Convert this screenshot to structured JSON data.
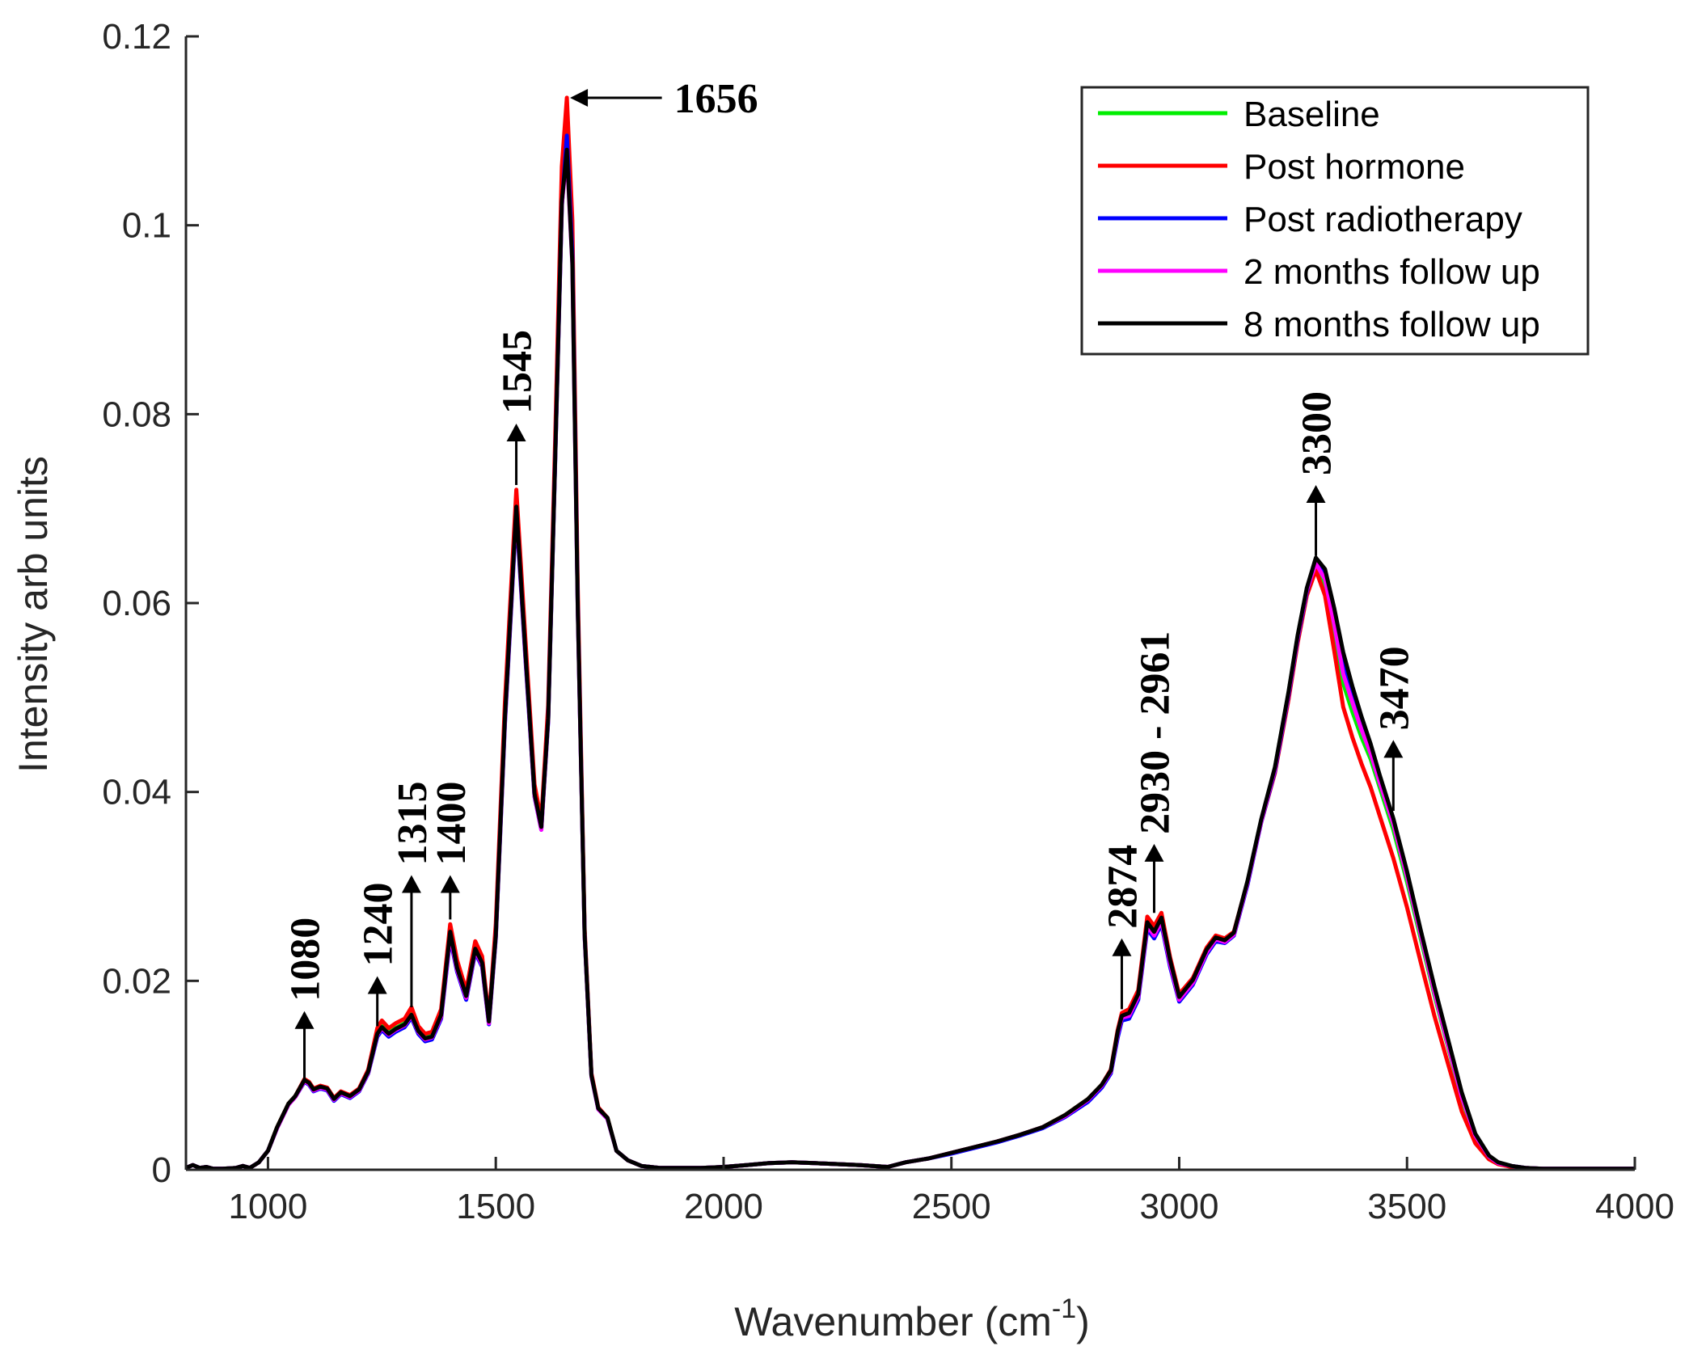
{
  "chart_data": {
    "type": "line",
    "title": "",
    "xlabel": "Wavenumber (cm",
    "xlabel_sup": "-1",
    "xlabel_close": ")",
    "ylabel": "Intensity arb units",
    "xlim": [
      820,
      4000
    ],
    "ylim": [
      0,
      0.12
    ],
    "xticks": [
      1000,
      1500,
      2000,
      2500,
      3000,
      3500,
      4000
    ],
    "xtick_labels": [
      "1000",
      "1500",
      "2000",
      "2500",
      "3000",
      "3500",
      "4000"
    ],
    "yticks": [
      0,
      0.02,
      0.04,
      0.06,
      0.08,
      0.1,
      0.12
    ],
    "ytick_labels": [
      "0",
      "0.02",
      "0.04",
      "0.06",
      "0.08",
      "0.1",
      "0.12"
    ],
    "grid": false,
    "legend_position": "top-right",
    "x": [
      820,
      835,
      850,
      865,
      880,
      900,
      930,
      945,
      960,
      980,
      1000,
      1020,
      1045,
      1060,
      1080,
      1090,
      1100,
      1115,
      1130,
      1145,
      1160,
      1180,
      1200,
      1220,
      1240,
      1250,
      1265,
      1280,
      1300,
      1315,
      1330,
      1345,
      1360,
      1380,
      1400,
      1415,
      1435,
      1455,
      1470,
      1485,
      1500,
      1520,
      1545,
      1565,
      1585,
      1600,
      1615,
      1630,
      1645,
      1656,
      1668,
      1680,
      1695,
      1710,
      1725,
      1745,
      1765,
      1790,
      1820,
      1860,
      1900,
      1950,
      2000,
      2050,
      2100,
      2150,
      2200,
      2250,
      2300,
      2360,
      2400,
      2450,
      2500,
      2550,
      2600,
      2650,
      2700,
      2750,
      2800,
      2830,
      2850,
      2865,
      2874,
      2890,
      2910,
      2930,
      2945,
      2961,
      2980,
      3000,
      3030,
      3060,
      3080,
      3100,
      3120,
      3150,
      3180,
      3210,
      3240,
      3260,
      3280,
      3300,
      3320,
      3340,
      3360,
      3380,
      3400,
      3420,
      3440,
      3470,
      3500,
      3530,
      3560,
      3590,
      3620,
      3650,
      3680,
      3700,
      3730,
      3760,
      3800,
      3850,
      3900,
      3950,
      4000
    ],
    "series": [
      {
        "name": "Baseline",
        "color": "#00ee00",
        "values": [
          0.0002,
          0.0005,
          0.0002,
          0.0003,
          0.0001,
          0.0001,
          0.0002,
          0.0004,
          0.0002,
          0.0008,
          0.002,
          0.0045,
          0.007,
          0.0078,
          0.0095,
          0.0092,
          0.0085,
          0.0088,
          0.0086,
          0.0075,
          0.0082,
          0.0078,
          0.0085,
          0.0105,
          0.0145,
          0.0152,
          0.0145,
          0.015,
          0.0155,
          0.0165,
          0.0148,
          0.014,
          0.0142,
          0.0165,
          0.025,
          0.0215,
          0.0185,
          0.0235,
          0.022,
          0.0158,
          0.025,
          0.048,
          0.0705,
          0.055,
          0.04,
          0.0365,
          0.048,
          0.075,
          0.103,
          0.1105,
          0.098,
          0.06,
          0.025,
          0.01,
          0.0065,
          0.0055,
          0.002,
          0.001,
          0.0004,
          0.0002,
          0.0002,
          0.0002,
          0.0003,
          0.0005,
          0.0007,
          0.0008,
          0.0007,
          0.0006,
          0.0005,
          0.0003,
          0.0008,
          0.0012,
          0.0018,
          0.0024,
          0.003,
          0.0037,
          0.0045,
          0.0058,
          0.0075,
          0.009,
          0.0105,
          0.0145,
          0.0162,
          0.0165,
          0.0185,
          0.026,
          0.025,
          0.0265,
          0.022,
          0.0182,
          0.02,
          0.0232,
          0.0245,
          0.0242,
          0.025,
          0.0305,
          0.037,
          0.0425,
          0.0505,
          0.0565,
          0.0615,
          0.064,
          0.062,
          0.057,
          0.0515,
          0.0485,
          0.0458,
          0.0435,
          0.0405,
          0.036,
          0.0305,
          0.0245,
          0.0185,
          0.013,
          0.0075,
          0.0035,
          0.0013,
          0.0007,
          0.0004,
          0.0002,
          0.0001,
          0.0001,
          0.0001,
          0.0001,
          0.0001
        ]
      },
      {
        "name": "Post hormone",
        "color": "#ff0000",
        "values": [
          0.0002,
          0.0005,
          0.0002,
          0.0003,
          0.0001,
          0.0001,
          0.0002,
          0.0004,
          0.0002,
          0.0008,
          0.002,
          0.0045,
          0.007,
          0.0078,
          0.0096,
          0.0093,
          0.0086,
          0.0089,
          0.0087,
          0.0076,
          0.0083,
          0.0079,
          0.0086,
          0.0106,
          0.015,
          0.0158,
          0.015,
          0.0155,
          0.016,
          0.0172,
          0.0152,
          0.0144,
          0.0146,
          0.017,
          0.026,
          0.0222,
          0.019,
          0.0242,
          0.0226,
          0.016,
          0.026,
          0.0495,
          0.072,
          0.0562,
          0.0408,
          0.037,
          0.0492,
          0.0768,
          0.1062,
          0.1135,
          0.1005,
          0.0615,
          0.0255,
          0.0102,
          0.0066,
          0.0055,
          0.002,
          0.001,
          0.0004,
          0.0002,
          0.0002,
          0.0002,
          0.0003,
          0.0005,
          0.0007,
          0.0008,
          0.0007,
          0.0006,
          0.0005,
          0.0003,
          0.0008,
          0.0012,
          0.0018,
          0.0024,
          0.003,
          0.0037,
          0.0045,
          0.0058,
          0.0075,
          0.009,
          0.0106,
          0.0148,
          0.0166,
          0.017,
          0.019,
          0.0268,
          0.0258,
          0.0272,
          0.0225,
          0.0186,
          0.0203,
          0.0235,
          0.0248,
          0.0245,
          0.0252,
          0.0305,
          0.0368,
          0.042,
          0.0498,
          0.0558,
          0.0608,
          0.0635,
          0.0608,
          0.055,
          0.049,
          0.0458,
          0.043,
          0.0405,
          0.0375,
          0.033,
          0.0278,
          0.022,
          0.0163,
          0.0112,
          0.0062,
          0.0028,
          0.0011,
          0.0006,
          0.0003,
          0.0002,
          0.0001,
          0.0001,
          0.0001,
          0.0001,
          0.0001
        ]
      },
      {
        "name": "Post radiotherapy",
        "color": "#0000ff",
        "values": [
          0.0002,
          0.0005,
          0.0002,
          0.0003,
          0.0001,
          0.0001,
          0.0002,
          0.0004,
          0.0002,
          0.0008,
          0.002,
          0.0044,
          0.0069,
          0.0077,
          0.0093,
          0.009,
          0.0083,
          0.0086,
          0.0084,
          0.0073,
          0.008,
          0.0076,
          0.0083,
          0.0102,
          0.0141,
          0.0148,
          0.0141,
          0.0146,
          0.0151,
          0.0161,
          0.0144,
          0.0136,
          0.0138,
          0.016,
          0.0245,
          0.021,
          0.018,
          0.023,
          0.0215,
          0.0154,
          0.0245,
          0.0472,
          0.0695,
          0.0542,
          0.0395,
          0.036,
          0.0475,
          0.0745,
          0.102,
          0.1095,
          0.097,
          0.0595,
          0.0248,
          0.0099,
          0.0064,
          0.0054,
          0.002,
          0.001,
          0.0004,
          0.0002,
          0.0002,
          0.0002,
          0.0003,
          0.0005,
          0.0007,
          0.0008,
          0.0007,
          0.0006,
          0.0005,
          0.0003,
          0.0008,
          0.0012,
          0.0017,
          0.0023,
          0.0029,
          0.0036,
          0.0044,
          0.0056,
          0.0072,
          0.0087,
          0.0102,
          0.014,
          0.0158,
          0.016,
          0.018,
          0.0255,
          0.0245,
          0.026,
          0.0215,
          0.0178,
          0.0196,
          0.0228,
          0.0242,
          0.024,
          0.0248,
          0.0302,
          0.0368,
          0.0422,
          0.0502,
          0.0562,
          0.0612,
          0.0645,
          0.063,
          0.0585,
          0.0535,
          0.05,
          0.047,
          0.0442,
          0.0412,
          0.0368,
          0.0312,
          0.025,
          0.019,
          0.0134,
          0.0078,
          0.0036,
          0.0014,
          0.0007,
          0.0004,
          0.0002,
          0.0001,
          0.0001,
          0.0001,
          0.0001,
          0.0001
        ]
      },
      {
        "name": "2 months follow up",
        "color": "#ff00ff",
        "values": [
          0.0002,
          0.0005,
          0.0002,
          0.0003,
          0.0001,
          0.0001,
          0.0002,
          0.0004,
          0.0002,
          0.0008,
          0.002,
          0.0044,
          0.0069,
          0.0077,
          0.0094,
          0.0091,
          0.0084,
          0.0087,
          0.0085,
          0.0074,
          0.0081,
          0.0077,
          0.0084,
          0.0103,
          0.0143,
          0.015,
          0.0143,
          0.0148,
          0.0153,
          0.0163,
          0.0146,
          0.0138,
          0.014,
          0.0162,
          0.0248,
          0.0212,
          0.0182,
          0.0232,
          0.0217,
          0.0155,
          0.0247,
          0.0475,
          0.07,
          0.0545,
          0.0396,
          0.036,
          0.0477,
          0.0748,
          0.1022,
          0.1075,
          0.0958,
          0.0592,
          0.0247,
          0.0099,
          0.0064,
          0.0054,
          0.002,
          0.001,
          0.0004,
          0.0002,
          0.0002,
          0.0002,
          0.0003,
          0.0005,
          0.0007,
          0.0008,
          0.0007,
          0.0006,
          0.0005,
          0.0003,
          0.0008,
          0.0012,
          0.0018,
          0.0024,
          0.003,
          0.0037,
          0.0045,
          0.0057,
          0.0074,
          0.0089,
          0.0104,
          0.0144,
          0.0161,
          0.0163,
          0.0183,
          0.0258,
          0.0248,
          0.0263,
          0.0218,
          0.018,
          0.0198,
          0.023,
          0.0244,
          0.0241,
          0.0249,
          0.0304,
          0.0369,
          0.0424,
          0.0504,
          0.0564,
          0.0614,
          0.0642,
          0.0625,
          0.0578,
          0.0525,
          0.0495,
          0.0466,
          0.0441,
          0.041,
          0.0366,
          0.031,
          0.0249,
          0.0188,
          0.0132,
          0.0077,
          0.0036,
          0.0014,
          0.0007,
          0.0004,
          0.0002,
          0.0001,
          0.0001,
          0.0001,
          0.0001,
          0.0001
        ]
      },
      {
        "name": "8 months follow up",
        "color": "#000000",
        "values": [
          0.0002,
          0.0005,
          0.0002,
          0.0003,
          0.0001,
          0.0001,
          0.0002,
          0.0004,
          0.0002,
          0.0008,
          0.002,
          0.0045,
          0.007,
          0.0078,
          0.0095,
          0.0092,
          0.0085,
          0.0088,
          0.0086,
          0.0075,
          0.0082,
          0.0078,
          0.0085,
          0.0104,
          0.0144,
          0.0151,
          0.0144,
          0.0149,
          0.0154,
          0.0164,
          0.0147,
          0.0139,
          0.0141,
          0.0164,
          0.0252,
          0.0214,
          0.0184,
          0.0234,
          0.0219,
          0.0157,
          0.0248,
          0.0478,
          0.0702,
          0.0548,
          0.0398,
          0.0363,
          0.0478,
          0.0748,
          0.1025,
          0.108,
          0.096,
          0.0595,
          0.0249,
          0.01,
          0.0065,
          0.0055,
          0.002,
          0.001,
          0.0004,
          0.0002,
          0.0002,
          0.0002,
          0.0003,
          0.0005,
          0.0007,
          0.0008,
          0.0007,
          0.0006,
          0.0005,
          0.0003,
          0.0008,
          0.0012,
          0.0018,
          0.0024,
          0.003,
          0.0037,
          0.0045,
          0.0058,
          0.0075,
          0.009,
          0.0105,
          0.0146,
          0.0163,
          0.0166,
          0.0186,
          0.0262,
          0.0252,
          0.0267,
          0.0222,
          0.0183,
          0.0201,
          0.0233,
          0.0246,
          0.0243,
          0.0251,
          0.0306,
          0.0371,
          0.0426,
          0.0506,
          0.0566,
          0.0616,
          0.0648,
          0.0636,
          0.0595,
          0.0548,
          0.0512,
          0.048,
          0.0451,
          0.0418,
          0.0372,
          0.0316,
          0.0254,
          0.0194,
          0.0138,
          0.0082,
          0.0038,
          0.0015,
          0.0008,
          0.0004,
          0.0002,
          0.0001,
          0.0001,
          0.0001,
          0.0001,
          0.0001
        ]
      }
    ],
    "annotations": [
      {
        "label": "1080",
        "x": 1080,
        "y_start": 0.0095,
        "y_end": 0.0168,
        "orientation": "vertical"
      },
      {
        "label": "1240",
        "x": 1240,
        "y_start": 0.0152,
        "y_end": 0.0205,
        "orientation": "vertical"
      },
      {
        "label": "1315",
        "x": 1315,
        "y_start": 0.0172,
        "y_end": 0.0312,
        "orientation": "vertical"
      },
      {
        "label": "1400",
        "x": 1400,
        "y_start": 0.0265,
        "y_end": 0.0312,
        "orientation": "vertical"
      },
      {
        "label": "1545",
        "x": 1545,
        "y_start": 0.0725,
        "y_end": 0.079,
        "orientation": "vertical"
      },
      {
        "label": "1656",
        "x_start": 1900,
        "x_end": 1663,
        "y": 0.1135,
        "orientation": "horizontal"
      },
      {
        "label": "2874",
        "x": 2874,
        "y_start": 0.017,
        "y_end": 0.0245,
        "orientation": "vertical"
      },
      {
        "label": "2930 - 2961",
        "x": 2945,
        "y_start": 0.0272,
        "y_end": 0.0345,
        "orientation": "vertical"
      },
      {
        "label": "3300",
        "x": 3300,
        "y_start": 0.065,
        "y_end": 0.0725,
        "orientation": "vertical"
      },
      {
        "label": "3470",
        "x": 3470,
        "y_start": 0.038,
        "y_end": 0.0455,
        "orientation": "vertical"
      }
    ]
  }
}
